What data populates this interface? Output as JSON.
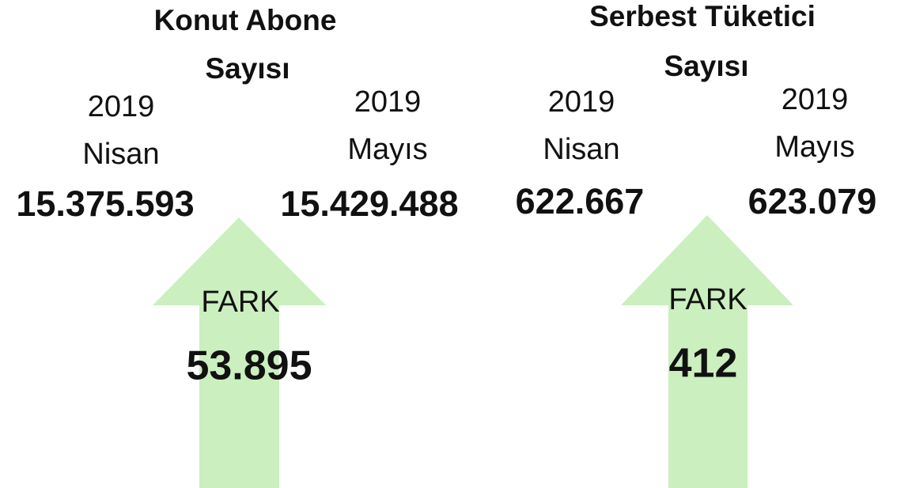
{
  "panels": [
    {
      "title_lines": [
        "Konut Abone",
        "Sayısı"
      ],
      "columns": [
        {
          "year": "2019",
          "month": "Nisan",
          "value": "15.375.593"
        },
        {
          "year": "2019",
          "month": "Mayıs",
          "value": "15.429.488"
        }
      ],
      "diff_label": "FARK",
      "diff_value": "53.895"
    },
    {
      "title_lines": [
        "Serbest Tüketici",
        "Sayısı"
      ],
      "columns": [
        {
          "year": "2019",
          "month": "Nisan",
          "value": "622.667"
        },
        {
          "year": "2019",
          "month": "Mayıs",
          "value": "623.079"
        }
      ],
      "diff_label": "FARK",
      "diff_value": "412"
    }
  ]
}
